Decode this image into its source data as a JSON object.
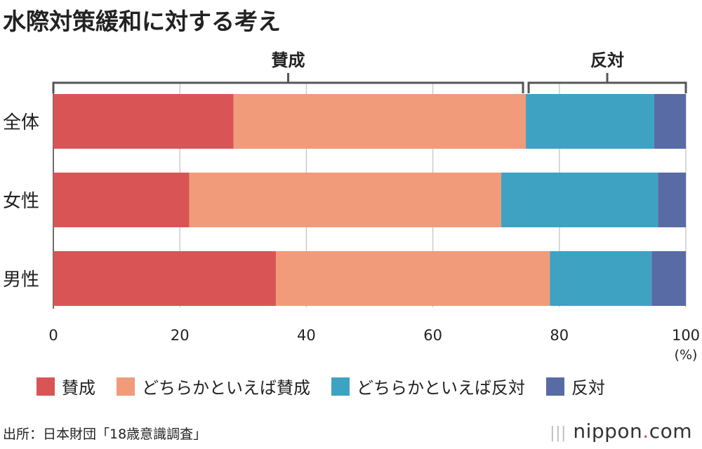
{
  "title": "水際対策緩和に対する考え",
  "source": "出所：日本財団「18歳意識調査」",
  "logo": {
    "name": "nippon",
    "dot": ".",
    "tld": "com"
  },
  "chart_data": {
    "type": "bar",
    "orientation": "horizontal",
    "stacked": true,
    "categories": [
      "全体",
      "女性",
      "男性"
    ],
    "series": [
      {
        "name": "賛成",
        "color": "#d95555",
        "values": [
          28.5,
          21.5,
          35.2
        ]
      },
      {
        "name": "どちらかといえば賛成",
        "color": "#f19b7a",
        "values": [
          46.2,
          49.3,
          43.3
        ]
      },
      {
        "name": "どちらかといえば反対",
        "color": "#3ea2c3",
        "values": [
          20.3,
          24.8,
          16.1
        ]
      },
      {
        "name": "反対",
        "color": "#586ba5",
        "values": [
          5.0,
          4.4,
          5.4
        ]
      }
    ],
    "xlim": [
      0,
      100
    ],
    "xticks": [
      "0",
      "20",
      "40",
      "60",
      "80",
      "100"
    ],
    "xunit": "(%)",
    "grid": true,
    "legend": "bottom",
    "brackets": [
      {
        "label": "賛成",
        "from": 0,
        "to": 74.7
      },
      {
        "label": "反対",
        "from": 74.7,
        "to": 100
      }
    ]
  }
}
